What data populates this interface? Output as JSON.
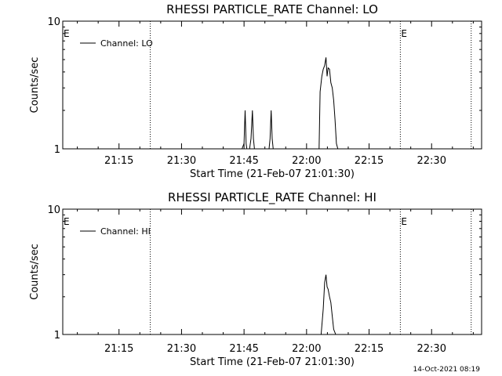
{
  "colors": {
    "background": "#ffffff",
    "foreground": "#000000"
  },
  "footer": {
    "timestamp": "14-Oct-2021 08:19"
  },
  "chart_data": [
    {
      "type": "line",
      "title": "RHESSI PARTICLE_RATE Channel: LO",
      "xlabel": "Start Time (21-Feb-07 21:01:30)",
      "ylabel": "Counts/sec",
      "yscale": "log",
      "xlim": [
        "21:01:30",
        "22:42:00"
      ],
      "ylim": [
        1,
        10
      ],
      "xticks": [
        "21:15",
        "21:30",
        "21:45",
        "22:00",
        "22:15",
        "22:30"
      ],
      "yticks": [
        "1",
        "10"
      ],
      "grid": false,
      "legend": {
        "position": "top-left",
        "entries": [
          "Channel: LO"
        ]
      },
      "flag_lines": {
        "times": [
          "21:01:30",
          "21:22:30",
          "22:22:30",
          "22:39:30"
        ],
        "labels": [
          "E",
          "",
          "E",
          ""
        ]
      },
      "series": [
        {
          "name": "Channel: LO",
          "x": [
            "21:01:30",
            "21:44:30",
            "21:45:00",
            "21:45:15",
            "21:45:30",
            "21:45:40",
            "21:45:45",
            "21:46:20",
            "21:46:40",
            "21:47:00",
            "21:47:15",
            "21:47:30",
            "21:51:00",
            "21:51:15",
            "21:51:30",
            "21:51:45",
            "21:52:00",
            "22:03:00",
            "22:03:15",
            "22:03:40",
            "22:04:00",
            "22:04:20",
            "22:04:40",
            "22:04:55",
            "22:05:10",
            "22:05:30",
            "22:05:50",
            "22:06:10",
            "22:06:30",
            "22:06:50",
            "22:07:10",
            "22:07:30",
            "22:42:00"
          ],
          "values": [
            1,
            1,
            1.1,
            2,
            1.1,
            1,
            1,
            1,
            1.2,
            2,
            1.2,
            1,
            1,
            1.2,
            2,
            1.2,
            1,
            1,
            2.8,
            3.7,
            4.2,
            4.5,
            5.2,
            3.7,
            4.3,
            4.2,
            3.3,
            3.0,
            2.4,
            1.7,
            1.1,
            1,
            1
          ]
        }
      ]
    },
    {
      "type": "line",
      "title": "RHESSI PARTICLE_RATE Channel: HI",
      "xlabel": "Start Time (21-Feb-07 21:01:30)",
      "ylabel": "Counts/sec",
      "yscale": "log",
      "xlim": [
        "21:01:30",
        "22:42:00"
      ],
      "ylim": [
        1,
        10
      ],
      "xticks": [
        "21:15",
        "21:30",
        "21:45",
        "22:00",
        "22:15",
        "22:30"
      ],
      "yticks": [
        "1",
        "10"
      ],
      "grid": false,
      "legend": {
        "position": "top-left",
        "entries": [
          "Channel: HI"
        ]
      },
      "flag_lines": {
        "times": [
          "21:01:30",
          "21:22:30",
          "22:22:30",
          "22:39:30"
        ],
        "labels": [
          "E",
          "",
          "E",
          ""
        ]
      },
      "series": [
        {
          "name": "Channel: HI",
          "x": [
            "21:01:30",
            "22:03:00",
            "22:03:30",
            "22:04:00",
            "22:04:20",
            "22:04:40",
            "22:04:55",
            "22:05:10",
            "22:05:30",
            "22:05:50",
            "22:06:10",
            "22:06:30",
            "22:07:00",
            "22:42:00"
          ],
          "values": [
            1,
            1,
            1,
            1.6,
            2.6,
            3.0,
            2.4,
            2.3,
            2.0,
            1.8,
            1.4,
            1.1,
            1,
            1
          ]
        }
      ]
    }
  ]
}
